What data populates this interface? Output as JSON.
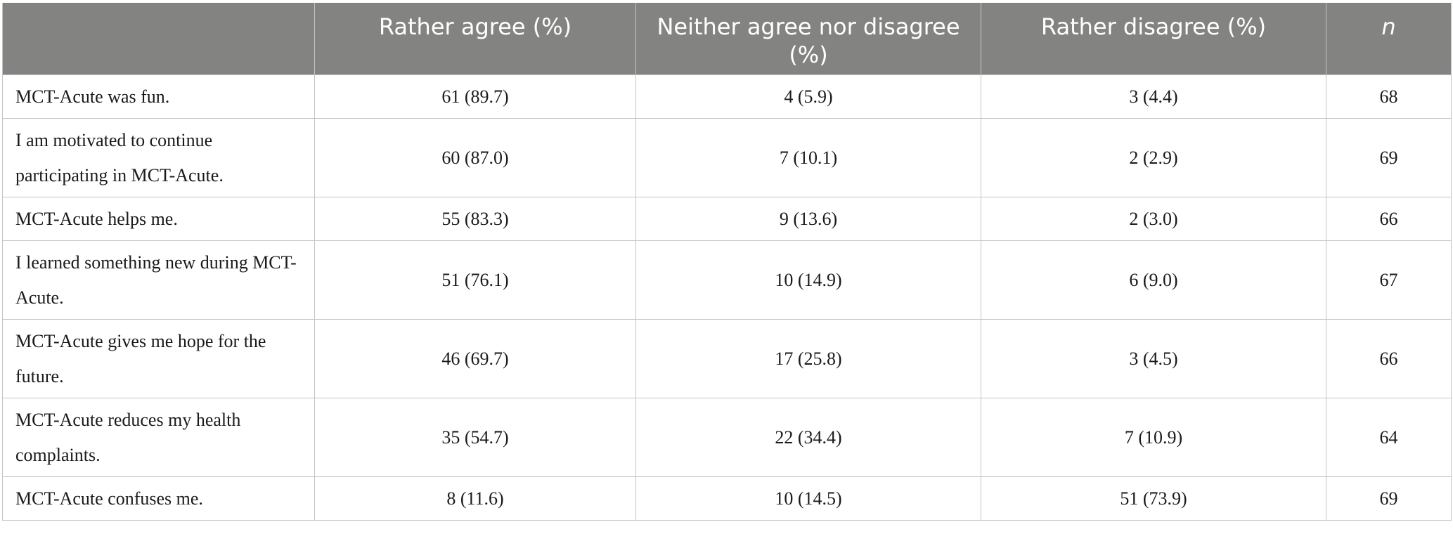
{
  "table": {
    "headers": [
      "",
      "Rather agree (%)",
      "Neither agree nor disagree (%)",
      "Rather disagree (%)",
      "n"
    ],
    "rows": [
      {
        "statement": "MCT-Acute was fun.",
        "agree": "61 (89.7)",
        "neither": "4 (5.9)",
        "disagree": "3 (4.4)",
        "n": "68"
      },
      {
        "statement": "I am motivated to continue participating in MCT-Acute.",
        "agree": "60 (87.0)",
        "neither": "7 (10.1)",
        "disagree": "2 (2.9)",
        "n": "69"
      },
      {
        "statement": "MCT-Acute helps me.",
        "agree": "55 (83.3)",
        "neither": "9 (13.6)",
        "disagree": "2 (3.0)",
        "n": "66"
      },
      {
        "statement": "I learned something new during MCT-Acute.",
        "agree": "51 (76.1)",
        "neither": "10 (14.9)",
        "disagree": "6 (9.0)",
        "n": "67"
      },
      {
        "statement": "MCT-Acute gives me hope for the future.",
        "agree": "46 (69.7)",
        "neither": "17 (25.8)",
        "disagree": "3 (4.5)",
        "n": "66"
      },
      {
        "statement": "MCT-Acute reduces my health complaints.",
        "agree": "35 (54.7)",
        "neither": "22 (34.4)",
        "disagree": "7 (10.9)",
        "n": "64"
      },
      {
        "statement": "MCT-Acute confuses me.",
        "agree": "8 (11.6)",
        "neither": "10 (14.5)",
        "disagree": "51 (73.9)",
        "n": "69"
      }
    ]
  },
  "colors": {
    "header_background": "#838482",
    "header_text": "#ffffff",
    "grid_lines": "#c4c4c4",
    "body_text": "#1a1a1a"
  }
}
